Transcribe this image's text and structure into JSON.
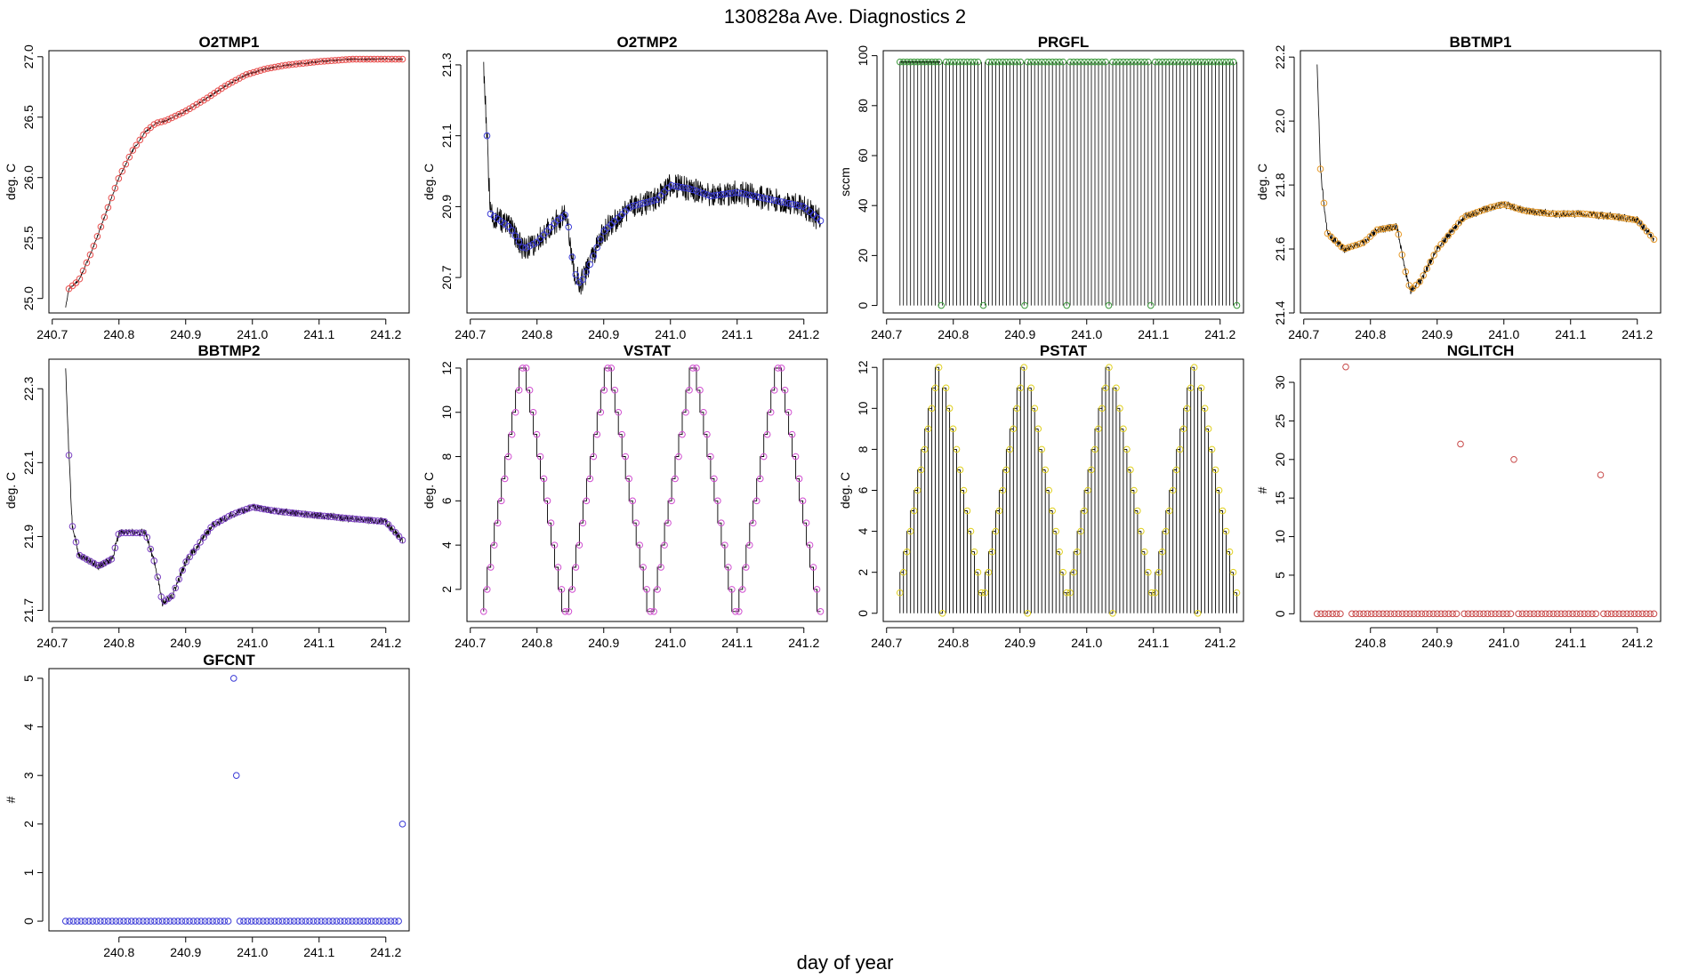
{
  "figure": {
    "title": "130828a   Ave. Diagnostics 2",
    "xlabel": "day of year"
  },
  "chart_data": [
    {
      "name": "O2TMP1",
      "type": "line",
      "title": "O2TMP1",
      "ylabel": "deg. C",
      "xlim": [
        240.695,
        241.235
      ],
      "ylim": [
        24.88,
        27.05
      ],
      "xticks": [
        240.7,
        240.8,
        240.9,
        241.0,
        241.1,
        241.2
      ],
      "xtick_labels": [
        "240.7",
        "240.8",
        "240.9",
        "241.0",
        "241.1",
        "241.2"
      ],
      "yticks": [
        25.0,
        25.5,
        26.0,
        26.5,
        27.0
      ],
      "ytick_labels": [
        "25.0",
        "25.5",
        "26.0",
        "26.5",
        "27.0"
      ],
      "marker_color": "#e8504f",
      "line_color": "#000000",
      "series": [
        {
          "name": "O2TMP1",
          "profile": [
            [
              240.72,
              24.93
            ],
            [
              240.725,
              25.08
            ],
            [
              240.74,
              25.15
            ],
            [
              240.76,
              25.4
            ],
            [
              240.78,
              25.7
            ],
            [
              240.8,
              26.0
            ],
            [
              240.82,
              26.22
            ],
            [
              240.84,
              26.38
            ],
            [
              240.855,
              26.45
            ],
            [
              240.87,
              26.47
            ],
            [
              240.9,
              26.55
            ],
            [
              240.93,
              26.65
            ],
            [
              240.96,
              26.76
            ],
            [
              240.99,
              26.85
            ],
            [
              241.02,
              26.9
            ],
            [
              241.05,
              26.93
            ],
            [
              241.1,
              26.96
            ],
            [
              241.15,
              26.98
            ],
            [
              241.225,
              26.98
            ]
          ],
          "noise": 0.008
        }
      ]
    },
    {
      "name": "O2TMP2",
      "type": "line",
      "title": "O2TMP2",
      "ylabel": "deg. C",
      "xlim": [
        240.695,
        241.235
      ],
      "ylim": [
        20.6,
        21.34
      ],
      "xticks": [
        240.7,
        240.8,
        240.9,
        241.0,
        241.1,
        241.2
      ],
      "xtick_labels": [
        "240.7",
        "240.8",
        "240.9",
        "241.0",
        "241.1",
        "241.2"
      ],
      "yticks": [
        20.7,
        20.9,
        21.1,
        21.3
      ],
      "ytick_labels": [
        "20.7",
        "20.9",
        "21.1",
        "21.3"
      ],
      "marker_color": "#3b3bd6",
      "line_color": "#000000",
      "series": [
        {
          "name": "O2TMP2",
          "profile": [
            [
              240.72,
              21.3
            ],
            [
              240.725,
              21.1
            ],
            [
              240.73,
              20.88
            ],
            [
              240.76,
              20.84
            ],
            [
              240.78,
              20.78
            ],
            [
              240.8,
              20.8
            ],
            [
              240.83,
              20.86
            ],
            [
              240.845,
              20.88
            ],
            [
              240.855,
              20.72
            ],
            [
              240.865,
              20.68
            ],
            [
              240.88,
              20.74
            ],
            [
              240.9,
              20.83
            ],
            [
              240.94,
              20.9
            ],
            [
              240.98,
              20.92
            ],
            [
              241.0,
              20.96
            ],
            [
              241.03,
              20.95
            ],
            [
              241.06,
              20.93
            ],
            [
              241.1,
              20.94
            ],
            [
              241.15,
              20.92
            ],
            [
              241.2,
              20.9
            ],
            [
              241.225,
              20.86
            ]
          ],
          "noise": 0.035
        }
      ]
    },
    {
      "name": "PRGFL",
      "type": "line",
      "title": "PRGFL",
      "ylabel": "sccm",
      "xlim": [
        240.695,
        241.235
      ],
      "ylim": [
        -3,
        102
      ],
      "xticks": [
        240.7,
        240.8,
        240.9,
        241.0,
        241.1,
        241.2
      ],
      "xtick_labels": [
        "240.7",
        "240.8",
        "240.9",
        "241.0",
        "241.1",
        "241.2"
      ],
      "yticks": [
        0,
        20,
        40,
        60,
        80,
        100
      ],
      "ytick_labels": [
        "0",
        "20",
        "40",
        "60",
        "80",
        "100"
      ],
      "marker_color": "#3b9a3b",
      "line_color": "#000000",
      "series": [
        {
          "name": "PRGFL",
          "levels": [
            0,
            97.5
          ],
          "zero_marks_at": [
            240.782,
            240.845,
            240.907,
            240.97,
            241.033,
            241.096,
            241.225
          ]
        }
      ]
    },
    {
      "name": "BBTMP1",
      "type": "line",
      "title": "BBTMP1",
      "ylabel": "deg. C",
      "xlim": [
        240.695,
        241.235
      ],
      "ylim": [
        21.4,
        22.22
      ],
      "xticks": [
        240.7,
        240.8,
        240.9,
        241.0,
        241.1,
        241.2
      ],
      "xtick_labels": [
        "240.7",
        "240.8",
        "240.9",
        "241.0",
        "241.1",
        "241.2"
      ],
      "yticks": [
        21.4,
        21.6,
        21.8,
        22.0,
        22.2
      ],
      "ytick_labels": [
        "21.4",
        "21.6",
        "21.8",
        "22.0",
        "22.2"
      ],
      "marker_color": "#e69a2a",
      "line_color": "#000000",
      "series": [
        {
          "name": "BBTMP1",
          "profile": [
            [
              240.72,
              22.18
            ],
            [
              240.725,
              21.85
            ],
            [
              240.735,
              21.65
            ],
            [
              240.76,
              21.6
            ],
            [
              240.79,
              21.62
            ],
            [
              240.81,
              21.66
            ],
            [
              240.84,
              21.67
            ],
            [
              240.85,
              21.55
            ],
            [
              240.86,
              21.47
            ],
            [
              240.875,
              21.5
            ],
            [
              240.9,
              21.6
            ],
            [
              240.94,
              21.7
            ],
            [
              240.98,
              21.73
            ],
            [
              241.0,
              21.74
            ],
            [
              241.03,
              21.72
            ],
            [
              241.07,
              21.71
            ],
            [
              241.12,
              21.71
            ],
            [
              241.17,
              21.7
            ],
            [
              241.2,
              21.69
            ],
            [
              241.225,
              21.63
            ]
          ],
          "noise": 0.012
        }
      ]
    },
    {
      "name": "BBTMP2",
      "type": "line",
      "title": "BBTMP2",
      "ylabel": "deg. C",
      "xlim": [
        240.695,
        241.235
      ],
      "ylim": [
        21.67,
        22.38
      ],
      "xticks": [
        240.7,
        240.8,
        240.9,
        241.0,
        241.1,
        241.2
      ],
      "xtick_labels": [
        "240.7",
        "240.8",
        "240.9",
        "241.0",
        "241.1",
        "241.2"
      ],
      "yticks": [
        21.7,
        21.9,
        22.1,
        22.3
      ],
      "ytick_labels": [
        "21.7",
        "21.9",
        "22.1",
        "22.3"
      ],
      "marker_color": "#7a3fc2",
      "line_color": "#000000",
      "series": [
        {
          "name": "BBTMP2",
          "profile": [
            [
              240.72,
              22.35
            ],
            [
              240.725,
              22.12
            ],
            [
              240.73,
              21.93
            ],
            [
              240.74,
              21.85
            ],
            [
              240.77,
              21.82
            ],
            [
              240.79,
              21.84
            ],
            [
              240.8,
              21.91
            ],
            [
              240.84,
              21.91
            ],
            [
              240.855,
              21.82
            ],
            [
              240.865,
              21.72
            ],
            [
              240.88,
              21.74
            ],
            [
              240.9,
              21.83
            ],
            [
              240.94,
              21.93
            ],
            [
              240.97,
              21.96
            ],
            [
              241.0,
              21.98
            ],
            [
              241.03,
              21.97
            ],
            [
              241.08,
              21.96
            ],
            [
              241.14,
              21.95
            ],
            [
              241.2,
              21.94
            ],
            [
              241.225,
              21.89
            ]
          ],
          "noise": 0.01
        }
      ]
    },
    {
      "name": "VSTAT",
      "type": "line",
      "title": "VSTAT",
      "ylabel": "deg. C",
      "xlim": [
        240.695,
        241.235
      ],
      "ylim": [
        0.55,
        12.4
      ],
      "xticks": [
        240.7,
        240.8,
        240.9,
        241.0,
        241.1,
        241.2
      ],
      "xtick_labels": [
        "240.7",
        "240.8",
        "240.9",
        "241.0",
        "241.1",
        "241.2"
      ],
      "yticks": [
        2,
        4,
        6,
        8,
        10,
        12
      ],
      "ytick_labels": [
        "2",
        "4",
        "6",
        "8",
        "10",
        "12"
      ],
      "marker_color": "#d04ed0",
      "line_color": "#000000",
      "series": [
        {
          "name": "VSTAT",
          "step_sequence": [
            1,
            2,
            3,
            4,
            5,
            6,
            7,
            8,
            9,
            10,
            11,
            12,
            12,
            11,
            10,
            9,
            8,
            7,
            6,
            5,
            4,
            3,
            2,
            1
          ],
          "x_start": 240.72,
          "x_end": 241.225,
          "cycles": 4
        }
      ]
    },
    {
      "name": "PSTAT",
      "type": "line",
      "title": "PSTAT",
      "ylabel": "deg. C",
      "xlim": [
        240.695,
        241.235
      ],
      "ylim": [
        -0.4,
        12.4
      ],
      "xticks": [
        240.7,
        240.8,
        240.9,
        241.0,
        241.1,
        241.2
      ],
      "xtick_labels": [
        "240.7",
        "240.8",
        "240.9",
        "241.0",
        "241.1",
        "241.2"
      ],
      "yticks": [
        0,
        2,
        4,
        6,
        8,
        10,
        12
      ],
      "ytick_labels": [
        "0",
        "2",
        "4",
        "6",
        "8",
        "10",
        "12"
      ],
      "marker_color": "#e0d020",
      "line_color": "#000000",
      "series": [
        {
          "name": "PSTAT",
          "step_sequence": [
            1,
            2,
            3,
            4,
            5,
            6,
            7,
            8,
            9,
            10,
            11,
            12,
            0,
            11,
            10,
            9,
            8,
            7,
            6,
            5,
            4,
            3,
            2,
            1
          ],
          "x_start": 240.72,
          "x_end": 241.225,
          "cycles": 4
        }
      ]
    },
    {
      "name": "NGLITCH",
      "type": "scatter",
      "title": "NGLITCH",
      "ylabel": "#",
      "xlim": [
        240.695,
        241.235
      ],
      "ylim": [
        -1,
        33
      ],
      "xticks": [
        240.8,
        240.9,
        241.0,
        241.1,
        241.2
      ],
      "xtick_labels": [
        "240.8",
        "240.9",
        "241.0",
        "241.1",
        "241.2"
      ],
      "yticks": [
        0,
        5,
        10,
        15,
        20,
        25,
        30
      ],
      "ytick_labels": [
        "0",
        "5",
        "10",
        "15",
        "20",
        "25",
        "30"
      ],
      "marker_color": "#c84a4a",
      "series": [
        {
          "name": "NGLITCH",
          "x_start": 240.72,
          "x_end": 241.225,
          "n_points": 88,
          "baseline": 0,
          "spikes": [
            [
              240.763,
              32
            ],
            [
              240.935,
              22
            ],
            [
              241.015,
              20
            ],
            [
              241.145,
              18
            ]
          ]
        }
      ]
    },
    {
      "name": "GFCNT",
      "type": "scatter",
      "title": "GFCNT",
      "ylabel": "#",
      "xlim": [
        240.695,
        241.235
      ],
      "ylim": [
        -0.2,
        5.2
      ],
      "xticks": [
        240.8,
        240.9,
        241.0,
        241.1,
        241.2
      ],
      "xtick_labels": [
        "240.8",
        "240.9",
        "241.0",
        "241.1",
        "241.2"
      ],
      "yticks": [
        0,
        1,
        2,
        3,
        4,
        5
      ],
      "ytick_labels": [
        "0",
        "1",
        "2",
        "3",
        "4",
        "5"
      ],
      "marker_color": "#3b3bd6",
      "series": [
        {
          "name": "GFCNT",
          "x_start": 240.72,
          "x_end": 241.225,
          "n_points": 88,
          "baseline": 0,
          "spikes": [
            [
              240.972,
              5
            ],
            [
              240.976,
              3
            ],
            [
              241.225,
              2
            ]
          ]
        }
      ]
    }
  ]
}
